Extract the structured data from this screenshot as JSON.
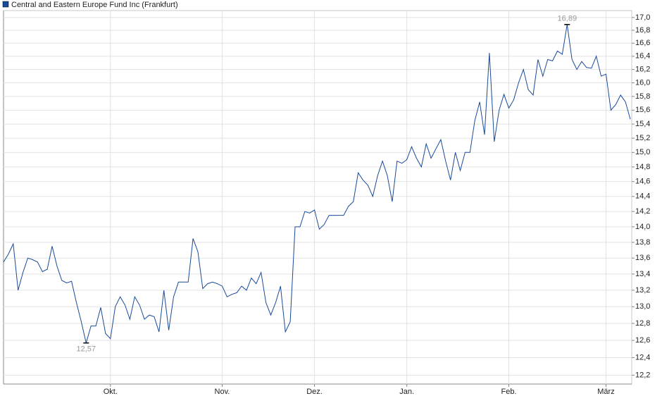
{
  "chart_data": {
    "type": "line",
    "log_scale": true,
    "grid": true,
    "legend": "top-left",
    "categories": [
      null,
      null,
      null,
      null,
      null,
      null,
      null,
      null,
      null,
      null,
      null,
      null,
      null,
      null,
      null,
      null,
      null,
      null,
      null,
      null,
      null,
      null,
      "Okt.",
      null,
      null,
      null,
      null,
      null,
      null,
      null,
      null,
      null,
      null,
      null,
      null,
      null,
      null,
      null,
      null,
      null,
      null,
      null,
      null,
      null,
      null,
      "Nov.",
      null,
      null,
      null,
      null,
      null,
      null,
      null,
      null,
      null,
      null,
      null,
      null,
      null,
      null,
      null,
      null,
      null,
      null,
      "Dez.",
      null,
      null,
      null,
      null,
      null,
      null,
      null,
      null,
      null,
      null,
      null,
      null,
      null,
      null,
      null,
      null,
      null,
      null,
      "Jan.",
      null,
      null,
      null,
      null,
      null,
      null,
      null,
      null,
      null,
      null,
      null,
      null,
      null,
      null,
      null,
      null,
      null,
      null,
      null,
      null,
      "Feb.",
      null,
      null,
      null,
      null,
      null,
      null,
      null,
      null,
      null,
      null,
      null,
      null,
      null,
      null,
      null,
      null,
      null,
      null,
      null,
      "März",
      null,
      null,
      null,
      null,
      null
    ],
    "series": [
      {
        "name": "Central and Eastern Europe Fund Inc (Frankfurt)",
        "color": "#1a4a9c",
        "values": [
          13.55,
          13.65,
          13.78,
          13.2,
          13.42,
          13.6,
          13.58,
          13.55,
          13.43,
          13.46,
          13.75,
          13.5,
          13.32,
          13.29,
          13.31,
          13.05,
          12.82,
          12.57,
          12.77,
          12.77,
          12.99,
          12.68,
          12.62,
          13.0,
          13.12,
          13.02,
          12.85,
          13.12,
          13.02,
          12.85,
          12.9,
          12.88,
          12.7,
          13.2,
          12.72,
          13.12,
          13.3,
          13.3,
          13.3,
          13.85,
          13.68,
          13.22,
          13.28,
          13.3,
          13.28,
          13.25,
          13.12,
          13.15,
          13.17,
          13.25,
          13.2,
          13.35,
          13.28,
          13.42,
          13.05,
          12.9,
          13.05,
          13.25,
          12.7,
          12.82,
          14.0,
          14.0,
          14.2,
          14.18,
          14.22,
          13.97,
          14.03,
          14.15,
          14.15,
          14.15,
          14.15,
          14.27,
          14.33,
          14.72,
          14.62,
          14.55,
          14.4,
          14.68,
          14.88,
          14.68,
          14.33,
          14.88,
          14.85,
          14.9,
          15.08,
          14.92,
          14.8,
          15.12,
          14.92,
          15.05,
          15.18,
          14.88,
          14.62,
          15.0,
          14.75,
          15.0,
          15.0,
          15.45,
          15.72,
          15.25,
          16.45,
          15.15,
          15.6,
          15.83,
          15.63,
          15.75,
          16.0,
          16.2,
          15.9,
          15.82,
          16.35,
          16.1,
          16.35,
          16.33,
          16.48,
          16.43,
          16.89,
          16.35,
          16.2,
          16.32,
          16.23,
          16.22,
          16.4,
          16.1,
          16.13,
          15.6,
          15.68,
          15.82,
          15.72,
          15.47
        ],
        "value_labels": [
          null,
          null,
          null,
          null,
          null,
          null,
          null,
          null,
          null,
          null,
          null,
          null,
          null,
          null,
          null,
          null,
          null,
          "12,57",
          null,
          null,
          null,
          null,
          null,
          null,
          null,
          null,
          null,
          null,
          null,
          null,
          null,
          null,
          null,
          null,
          null,
          null,
          null,
          null,
          null,
          null,
          null,
          null,
          null,
          null,
          null,
          null,
          null,
          null,
          null,
          null,
          null,
          null,
          null,
          null,
          null,
          null,
          null,
          null,
          null,
          null,
          null,
          null,
          null,
          null,
          null,
          null,
          null,
          null,
          null,
          null,
          null,
          null,
          null,
          null,
          null,
          null,
          null,
          null,
          null,
          null,
          null,
          null,
          null,
          null,
          null,
          null,
          null,
          null,
          null,
          null,
          null,
          null,
          null,
          null,
          null,
          null,
          null,
          null,
          null,
          null,
          null,
          null,
          null,
          null,
          null,
          null,
          null,
          null,
          null,
          null,
          null,
          null,
          null,
          null,
          null,
          null,
          "16,89",
          null,
          null,
          null,
          null,
          null,
          null,
          null,
          null,
          null,
          null,
          null,
          null,
          null
        ]
      }
    ],
    "ylim": [
      12.1,
      17.11
    ],
    "yticks": [
      {
        "value": 12.2,
        "label": "12,2"
      },
      {
        "value": 12.4,
        "label": "12,4"
      },
      {
        "value": 12.6,
        "label": "12,6"
      },
      {
        "value": 12.8,
        "label": "12,8"
      },
      {
        "value": 13.0,
        "label": "13,0"
      },
      {
        "value": 13.2,
        "label": "13,2"
      },
      {
        "value": 13.4,
        "label": "13,4"
      },
      {
        "value": 13.6,
        "label": "13,6"
      },
      {
        "value": 13.8,
        "label": "13,8"
      },
      {
        "value": 14.0,
        "label": "14,0"
      },
      {
        "value": 14.2,
        "label": "14,2"
      },
      {
        "value": 14.4,
        "label": "14,4"
      },
      {
        "value": 14.6,
        "label": "14,6"
      },
      {
        "value": 14.8,
        "label": "14,8"
      },
      {
        "value": 15.0,
        "label": "15,0"
      },
      {
        "value": 15.2,
        "label": "15,2"
      },
      {
        "value": 15.4,
        "label": "15,4"
      },
      {
        "value": 15.6,
        "label": "15,6"
      },
      {
        "value": 15.8,
        "label": "15,8"
      },
      {
        "value": 16.0,
        "label": "16,0"
      },
      {
        "value": 16.2,
        "label": "16,2"
      },
      {
        "value": 16.4,
        "label": "16,4"
      },
      {
        "value": 16.6,
        "label": "16,6"
      },
      {
        "value": 16.8,
        "label": "16,8"
      },
      {
        "value": 17.0,
        "label": "17,0"
      }
    ]
  }
}
